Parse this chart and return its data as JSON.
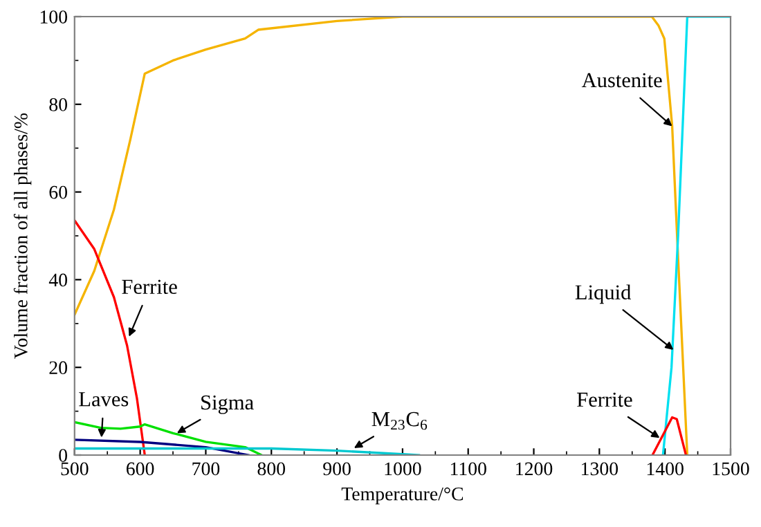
{
  "chart_data": {
    "type": "line",
    "xlabel": "Temperature/°C",
    "ylabel": "Volume fraction of all phases/%",
    "xlim": [
      500,
      1500
    ],
    "ylim": [
      0,
      100
    ],
    "xticks": [
      500,
      600,
      700,
      800,
      900,
      1000,
      1100,
      1200,
      1300,
      1400,
      1500
    ],
    "yticks": [
      0,
      20,
      40,
      60,
      80,
      100
    ],
    "grid": false,
    "legend": false,
    "marker": "none",
    "line_style": "solid",
    "series": [
      {
        "color": "#f5b400",
        "x": [
          500,
          530,
          560,
          585,
          607,
          650,
          700,
          760,
          780,
          900,
          1000,
          1380,
          1390,
          1399,
          1411,
          1420,
          1434
        ],
        "values": [
          32,
          42,
          56,
          72,
          87,
          90,
          92.5,
          95,
          97,
          99,
          100,
          100,
          98,
          95,
          75,
          45,
          0
        ]
      },
      {
        "color": "#00e0f0",
        "x": [
          1397,
          1410,
          1420,
          1434,
          1500
        ],
        "values": [
          0,
          20,
          50,
          100,
          100
        ]
      },
      {
        "color": "#ff0000",
        "x": [
          500,
          530,
          560,
          580,
          595,
          607
        ],
        "values": [
          53.5,
          47,
          36,
          25,
          13,
          0
        ]
      },
      {
        "color": "#ff0000",
        "x": [
          1381,
          1411,
          1418,
          1432
        ],
        "values": [
          0,
          8.6,
          8.2,
          0
        ]
      },
      {
        "color": "#00e000",
        "x": [
          500,
          540,
          570,
          600,
          607,
          650,
          700,
          760,
          785
        ],
        "values": [
          7.5,
          6.2,
          6,
          6.5,
          7,
          5,
          3,
          1.8,
          0
        ]
      },
      {
        "color": "#000080",
        "x": [
          500,
          600,
          700,
          765
        ],
        "values": [
          3.5,
          3,
          1.8,
          0
        ]
      },
      {
        "color": "#00c8d0",
        "x": [
          500,
          800,
          900,
          1000,
          1025
        ],
        "values": [
          1.5,
          1.5,
          1,
          0.2,
          0
        ]
      }
    ],
    "annotations": [
      {
        "text": "Austenite",
        "x": 1411,
        "y": 75
      },
      {
        "text": "Liquid",
        "x": 1413,
        "y": 24
      },
      {
        "text": "Ferrite",
        "x": 583,
        "y": 27
      },
      {
        "text": "Ferrite",
        "x": 1392,
        "y": 3.9
      },
      {
        "text": "Sigma",
        "x": 656,
        "y": 5
      },
      {
        "text": "Laves",
        "x": 541,
        "y": 4
      },
      {
        "text": "M$_{23}$C$_{6}$",
        "x": 926,
        "y": 1.6
      }
    ]
  }
}
